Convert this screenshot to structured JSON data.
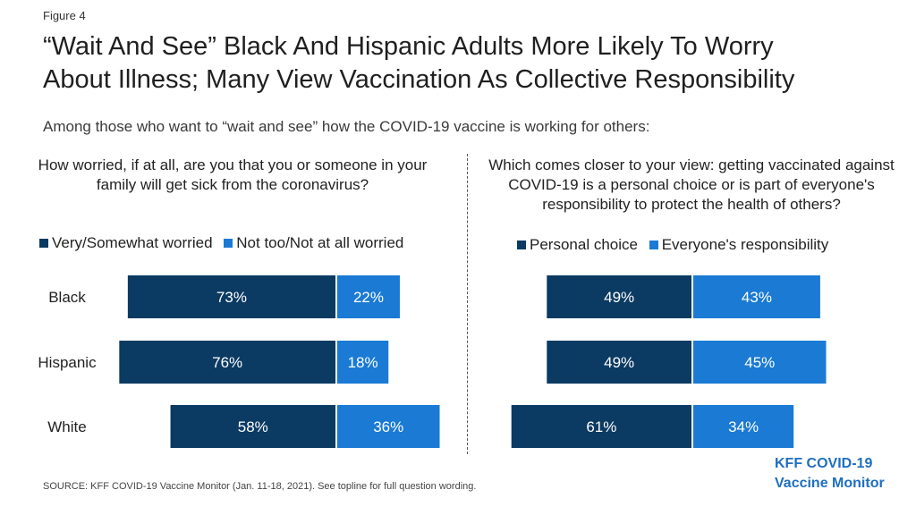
{
  "figure_label": "Figure 4",
  "title_line1": "“Wait And See” Black And Hispanic Adults More Likely To Worry",
  "title_line2": "About Illness; Many View Vaccination As Collective Responsibility",
  "subtitle": "Among those who want to “wait and see” how the COVID-19 vaccine is working for others:",
  "colors": {
    "dark": "#0b3a63",
    "light": "#1a7ad4"
  },
  "chart_data": [
    {
      "type": "bar",
      "orientation": "horizontal-diverging",
      "question": "How worried, if at all, are you that you or someone in your family will get sick from the coronavirus?",
      "categories": [
        "Black",
        "Hispanic",
        "White"
      ],
      "series": [
        {
          "name": "Very/Somewhat worried",
          "values": [
            73,
            76,
            58
          ],
          "labels": [
            "73%",
            "76%",
            "58%"
          ]
        },
        {
          "name": "Not too/Not at all worried",
          "values": [
            22,
            18,
            36
          ],
          "labels": [
            "22%",
            "18%",
            "36%"
          ]
        }
      ]
    },
    {
      "type": "bar",
      "orientation": "horizontal-diverging",
      "question": "Which comes closer to your view: getting vaccinated against COVID-19 is a personal choice or is part of everyone's responsibility to protect the health of others?",
      "categories": [
        "Black",
        "Hispanic",
        "White"
      ],
      "series": [
        {
          "name": "Personal choice",
          "values": [
            49,
            49,
            61
          ],
          "labels": [
            "49%",
            "49%",
            "61%"
          ]
        },
        {
          "name": "Everyone's responsibility",
          "values": [
            43,
            45,
            34
          ],
          "labels": [
            "43%",
            "45%",
            "34%"
          ]
        }
      ]
    }
  ],
  "source": "SOURCE: KFF COVID-19 Vaccine Monitor (Jan. 11-18, 2021). See topline for full question wording.",
  "logo_line1": "KFF COVID-19",
  "logo_line2": "Vaccine Monitor"
}
